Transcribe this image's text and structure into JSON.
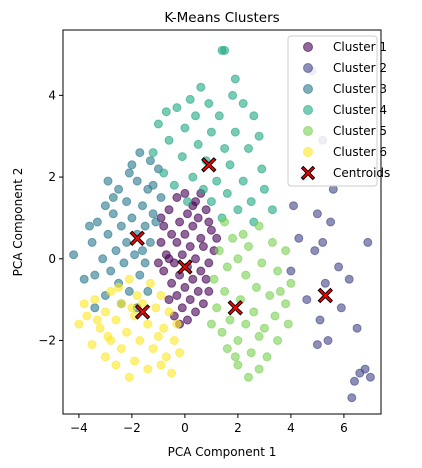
{
  "chart_data": {
    "type": "scatter",
    "title": "K-Means Clusters",
    "xlabel": "PCA Component 1",
    "ylabel": "PCA Component 2",
    "xlim": [
      -4.6,
      7.4
    ],
    "ylim": [
      -3.8,
      5.6
    ],
    "xticks": [
      -4,
      -2,
      0,
      2,
      4,
      6
    ],
    "yticks": [
      -2,
      0,
      2,
      4
    ],
    "grid": false,
    "legend_position": "top-right",
    "series": [
      {
        "name": "Cluster 1",
        "color": "#440154",
        "points": [
          [
            0.0,
            1.6
          ],
          [
            -0.3,
            1.5
          ],
          [
            0.4,
            1.4
          ],
          [
            0.8,
            1.2
          ],
          [
            -0.6,
            1.2
          ],
          [
            0.1,
            1.1
          ],
          [
            0.5,
            1.0
          ],
          [
            -0.2,
            0.9
          ],
          [
            0.9,
            0.9
          ],
          [
            -0.8,
            0.8
          ],
          [
            0.3,
            0.8
          ],
          [
            1.0,
            0.7
          ],
          [
            -0.5,
            0.6
          ],
          [
            0.0,
            0.6
          ],
          [
            0.6,
            0.5
          ],
          [
            -0.9,
            0.4
          ],
          [
            -0.3,
            0.4
          ],
          [
            0.2,
            0.3
          ],
          [
            0.7,
            0.3
          ],
          [
            1.1,
            0.2
          ],
          [
            -0.7,
            0.1
          ],
          [
            -0.1,
            0.1
          ],
          [
            0.4,
            0.0
          ],
          [
            0.9,
            -0.1
          ],
          [
            -0.4,
            -0.1
          ],
          [
            0.1,
            -0.2
          ],
          [
            0.6,
            -0.3
          ],
          [
            -0.8,
            -0.3
          ],
          [
            -0.2,
            -0.4
          ],
          [
            0.3,
            -0.5
          ],
          [
            0.8,
            -0.5
          ],
          [
            -0.5,
            -0.6
          ],
          [
            0.0,
            -0.7
          ],
          [
            0.5,
            -0.8
          ],
          [
            -0.3,
            -0.9
          ],
          [
            0.2,
            -1.0
          ],
          [
            -0.6,
            -1.0
          ],
          [
            0.7,
            -1.1
          ],
          [
            -0.1,
            -1.2
          ],
          [
            0.4,
            -1.3
          ],
          [
            0.1,
            -1.5
          ],
          [
            -0.4,
            -1.4
          ],
          [
            0.6,
            1.6
          ],
          [
            -0.9,
            1.0
          ],
          [
            1.2,
            0.5
          ],
          [
            -1.0,
            -0.1
          ],
          [
            0.9,
            -0.8
          ],
          [
            -0.2,
            -1.6
          ],
          [
            0.3,
            1.3
          ],
          [
            -0.6,
            0.0
          ]
        ]
      },
      {
        "name": "Cluster 2",
        "color": "#414487",
        "points": [
          [
            4.8,
            4.6
          ],
          [
            5.2,
            2.9
          ],
          [
            4.5,
            2.0
          ],
          [
            5.6,
            1.7
          ],
          [
            4.1,
            1.3
          ],
          [
            5.0,
            1.1
          ],
          [
            5.5,
            0.9
          ],
          [
            4.3,
            0.5
          ],
          [
            6.9,
            0.4
          ],
          [
            4.9,
            0.2
          ],
          [
            5.8,
            -0.2
          ],
          [
            6.2,
            -0.5
          ],
          [
            5.3,
            -0.6
          ],
          [
            4.6,
            -1.0
          ],
          [
            5.9,
            -1.2
          ],
          [
            5.1,
            -1.5
          ],
          [
            6.5,
            -1.7
          ],
          [
            5.4,
            -2.0
          ],
          [
            5.0,
            -2.1
          ],
          [
            6.8,
            -2.7
          ],
          [
            6.6,
            -2.8
          ],
          [
            7.0,
            -2.9
          ],
          [
            6.4,
            -3.0
          ],
          [
            6.3,
            -3.4
          ],
          [
            4.0,
            -0.3
          ],
          [
            5.2,
            0.4
          ]
        ]
      },
      {
        "name": "Cluster 3",
        "color": "#2a788e",
        "points": [
          [
            -1.7,
            2.6
          ],
          [
            -1.3,
            2.4
          ],
          [
            -2.1,
            2.1
          ],
          [
            -1.0,
            2.2
          ],
          [
            -1.8,
            1.9
          ],
          [
            -2.5,
            1.7
          ],
          [
            -1.4,
            1.7
          ],
          [
            -0.9,
            1.5
          ],
          [
            -2.2,
            1.4
          ],
          [
            -3.0,
            1.3
          ],
          [
            -1.6,
            1.3
          ],
          [
            -2.7,
            1.1
          ],
          [
            -1.2,
            1.1
          ],
          [
            -2.0,
            1.0
          ],
          [
            -3.3,
            0.9
          ],
          [
            -2.4,
            0.8
          ],
          [
            -1.5,
            0.8
          ],
          [
            -2.9,
            0.6
          ],
          [
            -1.8,
            0.6
          ],
          [
            -2.2,
            0.4
          ],
          [
            -3.5,
            0.4
          ],
          [
            -1.3,
            0.4
          ],
          [
            -2.6,
            0.2
          ],
          [
            -1.9,
            0.1
          ],
          [
            -3.1,
            0.0
          ],
          [
            -2.3,
            -0.1
          ],
          [
            -1.5,
            -0.1
          ],
          [
            -4.2,
            0.1
          ],
          [
            -2.8,
            -0.3
          ],
          [
            -3.4,
            -0.4
          ],
          [
            -1.7,
            -0.4
          ],
          [
            -2.5,
            -0.6
          ],
          [
            -3.8,
            -0.5
          ],
          [
            -2.1,
            -0.8
          ],
          [
            -1.4,
            -0.8
          ],
          [
            -3.0,
            -0.9
          ],
          [
            -2.4,
            -1.1
          ],
          [
            -1.8,
            -1.2
          ],
          [
            -3.4,
            -1.2
          ],
          [
            -2.7,
            1.5
          ],
          [
            -1.1,
            0.9
          ],
          [
            -3.6,
            0.8
          ],
          [
            -2.0,
            2.3
          ],
          [
            -1.2,
            1.8
          ],
          [
            -2.9,
            1.9
          ],
          [
            -1.6,
            0.2
          ]
        ]
      },
      {
        "name": "Cluster 4",
        "color": "#22a884",
        "points": [
          [
            1.4,
            5.1
          ],
          [
            1.5,
            5.1
          ],
          [
            0.6,
            4.2
          ],
          [
            1.8,
            4.0
          ],
          [
            0.9,
            3.8
          ],
          [
            2.2,
            3.8
          ],
          [
            -0.3,
            3.7
          ],
          [
            0.4,
            3.5
          ],
          [
            1.3,
            3.5
          ],
          [
            2.6,
            3.5
          ],
          [
            -1.0,
            3.3
          ],
          [
            0.0,
            3.2
          ],
          [
            1.0,
            3.1
          ],
          [
            1.9,
            3.1
          ],
          [
            2.8,
            3.0
          ],
          [
            -0.6,
            2.9
          ],
          [
            0.5,
            2.8
          ],
          [
            1.5,
            2.7
          ],
          [
            2.4,
            2.7
          ],
          [
            -1.2,
            2.6
          ],
          [
            -0.1,
            2.5
          ],
          [
            0.8,
            2.4
          ],
          [
            1.7,
            2.3
          ],
          [
            2.9,
            2.2
          ],
          [
            -0.8,
            2.1
          ],
          [
            0.3,
            2.0
          ],
          [
            1.2,
            1.9
          ],
          [
            2.2,
            1.9
          ],
          [
            -0.4,
            1.8
          ],
          [
            0.7,
            1.7
          ],
          [
            1.6,
            1.6
          ],
          [
            2.5,
            1.4
          ],
          [
            3.0,
            1.7
          ],
          [
            0.1,
            1.4
          ],
          [
            1.0,
            1.4
          ],
          [
            2.0,
            1.2
          ],
          [
            3.3,
            1.2
          ],
          [
            1.4,
            1.0
          ],
          [
            2.6,
            0.9
          ],
          [
            -0.7,
            3.6
          ],
          [
            1.9,
            4.4
          ],
          [
            0.2,
            3.9
          ]
        ]
      },
      {
        "name": "Cluster 5",
        "color": "#7ad151",
        "points": [
          [
            1.5,
            0.9
          ],
          [
            2.8,
            0.8
          ],
          [
            1.8,
            0.5
          ],
          [
            3.3,
            0.4
          ],
          [
            2.4,
            0.3
          ],
          [
            1.3,
            0.2
          ],
          [
            3.8,
            0.2
          ],
          [
            2.0,
            0.0
          ],
          [
            2.9,
            -0.1
          ],
          [
            1.6,
            -0.2
          ],
          [
            3.5,
            -0.3
          ],
          [
            2.3,
            -0.4
          ],
          [
            1.1,
            -0.5
          ],
          [
            4.0,
            -0.6
          ],
          [
            2.7,
            -0.7
          ],
          [
            1.5,
            -0.8
          ],
          [
            3.2,
            -0.9
          ],
          [
            2.1,
            -1.0
          ],
          [
            3.8,
            -1.1
          ],
          [
            1.2,
            -1.2
          ],
          [
            2.6,
            -1.3
          ],
          [
            3.4,
            -1.4
          ],
          [
            1.7,
            -1.5
          ],
          [
            2.3,
            -1.6
          ],
          [
            3.0,
            -1.7
          ],
          [
            1.4,
            -1.8
          ],
          [
            2.8,
            -1.9
          ],
          [
            2.0,
            -2.0
          ],
          [
            3.5,
            -2.0
          ],
          [
            1.6,
            -2.2
          ],
          [
            2.5,
            -2.3
          ],
          [
            3.1,
            -2.4
          ],
          [
            2.0,
            -2.6
          ],
          [
            2.8,
            -2.7
          ],
          [
            2.4,
            -2.9
          ],
          [
            1.0,
            -1.6
          ],
          [
            3.9,
            -1.6
          ],
          [
            2.2,
            0.6
          ],
          [
            1.9,
            -2.4
          ],
          [
            3.6,
            -0.8
          ]
        ]
      },
      {
        "name": "Cluster 6",
        "color": "#fde725",
        "points": [
          [
            -2.1,
            -0.5
          ],
          [
            -1.3,
            -0.6
          ],
          [
            -2.8,
            -0.8
          ],
          [
            -0.9,
            -0.9
          ],
          [
            -1.8,
            -0.9
          ],
          [
            -3.4,
            -1.0
          ],
          [
            -2.4,
            -1.1
          ],
          [
            -1.1,
            -1.2
          ],
          [
            -3.0,
            -1.3
          ],
          [
            -1.9,
            -1.4
          ],
          [
            -0.6,
            -1.3
          ],
          [
            -3.7,
            -1.4
          ],
          [
            -2.6,
            -1.5
          ],
          [
            -1.4,
            -1.6
          ],
          [
            -4.0,
            -1.6
          ],
          [
            -3.2,
            -1.7
          ],
          [
            -2.2,
            -1.8
          ],
          [
            -0.8,
            -1.7
          ],
          [
            -2.9,
            -1.9
          ],
          [
            -1.7,
            -2.0
          ],
          [
            -0.4,
            -2.0
          ],
          [
            -3.5,
            -2.1
          ],
          [
            -2.4,
            -2.2
          ],
          [
            -1.2,
            -2.2
          ],
          [
            -3.0,
            -2.4
          ],
          [
            -1.9,
            -2.5
          ],
          [
            -0.7,
            -2.4
          ],
          [
            -2.6,
            -2.6
          ],
          [
            -1.4,
            -2.7
          ],
          [
            -0.2,
            -2.3
          ],
          [
            -2.1,
            -2.9
          ],
          [
            -0.9,
            -2.6
          ],
          [
            -3.8,
            -1.1
          ],
          [
            -1.6,
            -1.1
          ],
          [
            -2.5,
            -0.7
          ],
          [
            -0.3,
            -1.6
          ],
          [
            -3.3,
            -1.5
          ],
          [
            -2.0,
            -1.2
          ],
          [
            -1.0,
            -1.9
          ],
          [
            -0.5,
            -2.8
          ],
          [
            -2.8,
            -2.0
          ]
        ]
      }
    ],
    "centroids": {
      "name": "Centroids",
      "color": "#ff0000",
      "points": [
        [
          -1.8,
          0.5
        ],
        [
          0.9,
          2.3
        ],
        [
          0.0,
          -0.2
        ],
        [
          1.9,
          -1.2
        ],
        [
          -1.6,
          -1.3
        ],
        [
          5.3,
          -0.9
        ]
      ]
    }
  }
}
